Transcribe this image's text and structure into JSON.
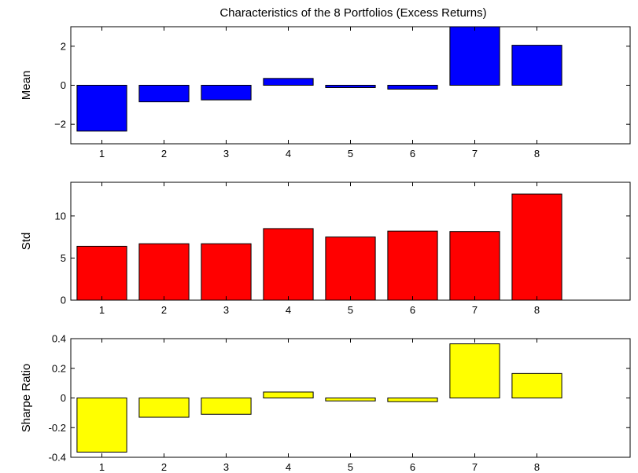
{
  "figure_title": "Characteristics of the 8 Portfolios (Excess Returns)",
  "chart_data": [
    {
      "type": "bar",
      "title": "Characteristics of the 8 Portfolios (Excess Returns)",
      "xlabel": "",
      "ylabel": "Mean",
      "categories": [
        "1",
        "2",
        "3",
        "4",
        "5",
        "6",
        "7",
        "8"
      ],
      "values": [
        -2.35,
        -0.85,
        -0.75,
        0.35,
        -0.12,
        -0.2,
        3.0,
        2.05
      ],
      "ylim": [
        -3,
        3
      ],
      "yticks": [
        -2,
        0,
        2
      ],
      "ytick_labels": [
        "−2",
        "0",
        "2"
      ],
      "color": "#0000ff",
      "grid": false
    },
    {
      "type": "bar",
      "title": "",
      "xlabel": "",
      "ylabel": "Std",
      "categories": [
        "1",
        "2",
        "3",
        "4",
        "5",
        "6",
        "7",
        "8"
      ],
      "values": [
        6.4,
        6.7,
        6.7,
        8.5,
        7.5,
        8.2,
        8.15,
        12.6
      ],
      "ylim": [
        0,
        14
      ],
      "yticks": [
        0,
        5,
        10
      ],
      "ytick_labels": [
        "0",
        "5",
        "10"
      ],
      "color": "#ff0000",
      "grid": false
    },
    {
      "type": "bar",
      "title": "",
      "xlabel": "",
      "ylabel": "Sharpe Ratio",
      "categories": [
        "1",
        "2",
        "3",
        "4",
        "5",
        "6",
        "7",
        "8"
      ],
      "values": [
        -0.365,
        -0.13,
        -0.11,
        0.04,
        -0.02,
        -0.025,
        0.365,
        0.165
      ],
      "ylim": [
        -0.4,
        0.4
      ],
      "yticks": [
        -0.4,
        -0.2,
        0,
        0.2,
        0.4
      ],
      "ytick_labels": [
        "-0.4",
        "-0.2",
        "0",
        "0.2",
        "0.4"
      ],
      "color": "#ffff00",
      "grid": false
    }
  ]
}
